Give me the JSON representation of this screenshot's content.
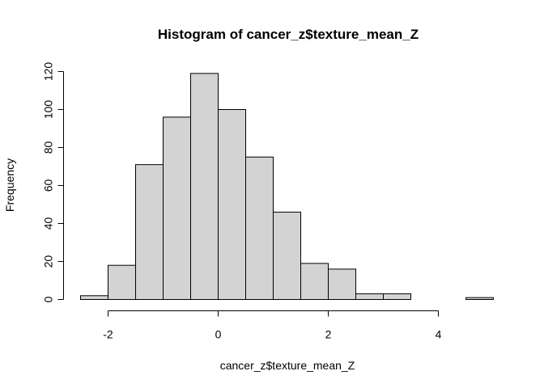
{
  "chart_data": {
    "type": "bar",
    "title": "Histogram of cancer_z$texture_mean_Z",
    "xlabel": "cancer_z$texture_mean_Z",
    "ylabel": "Frequency",
    "bins": [
      {
        "x0": -2.5,
        "x1": -2.0,
        "count": 2
      },
      {
        "x0": -2.0,
        "x1": -1.5,
        "count": 18
      },
      {
        "x0": -1.5,
        "x1": -1.0,
        "count": 71
      },
      {
        "x0": -1.0,
        "x1": -0.5,
        "count": 96
      },
      {
        "x0": -0.5,
        "x1": 0.0,
        "count": 119
      },
      {
        "x0": 0.0,
        "x1": 0.5,
        "count": 100
      },
      {
        "x0": 0.5,
        "x1": 1.0,
        "count": 75
      },
      {
        "x0": 1.0,
        "x1": 1.5,
        "count": 46
      },
      {
        "x0": 1.5,
        "x1": 2.0,
        "count": 19
      },
      {
        "x0": 2.0,
        "x1": 2.5,
        "count": 16
      },
      {
        "x0": 2.5,
        "x1": 3.0,
        "count": 3
      },
      {
        "x0": 3.0,
        "x1": 3.5,
        "count": 3
      },
      {
        "x0": 3.5,
        "x1": 4.0,
        "count": 0
      },
      {
        "x0": 4.0,
        "x1": 4.5,
        "count": 0
      },
      {
        "x0": 4.5,
        "x1": 5.0,
        "count": 1
      }
    ],
    "xticks": [
      -2,
      0,
      2,
      4
    ],
    "xtick_labels": [
      "-2",
      "0",
      "2",
      "4"
    ],
    "yticks": [
      0,
      20,
      40,
      60,
      80,
      100,
      120
    ],
    "ytick_labels": [
      "0",
      "20",
      "40",
      "60",
      "80",
      "100",
      "120"
    ],
    "xlim": [
      -2.5,
      5.0
    ],
    "ylim": [
      0,
      120
    ],
    "bar_fill": "#d3d3d3",
    "bar_stroke": "#000000",
    "grid": false
  }
}
